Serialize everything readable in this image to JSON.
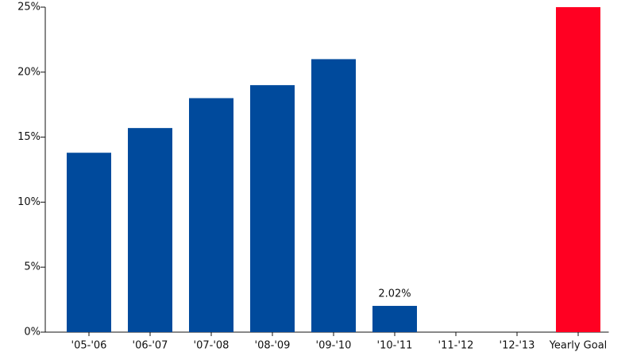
{
  "chart_data": {
    "type": "bar",
    "categories": [
      "'05-'06",
      "'06-'07",
      "'07-'08",
      "'08-'09",
      "'09-'10",
      "'10-'11",
      "'11-'12",
      "'12-'13",
      "Yearly Goal"
    ],
    "values": [
      13.8,
      15.7,
      18,
      19,
      21,
      2.02,
      null,
      null,
      25
    ],
    "value_labels": [
      null,
      null,
      null,
      null,
      null,
      "2.02%",
      null,
      null,
      null
    ],
    "colors": [
      "#004a9c",
      "#004a9c",
      "#004a9c",
      "#004a9c",
      "#004a9c",
      "#004a9c",
      "#004a9c",
      "#004a9c",
      "#ff0022"
    ],
    "ylim": [
      0,
      25
    ],
    "yticks": [
      {
        "value": 0,
        "label": "0%"
      },
      {
        "value": 5,
        "label": "5%"
      },
      {
        "value": 10,
        "label": "10%"
      },
      {
        "value": 15,
        "label": "15%"
      },
      {
        "value": 20,
        "label": "20%"
      },
      {
        "value": 25,
        "label": "25%"
      }
    ],
    "grid": false
  }
}
